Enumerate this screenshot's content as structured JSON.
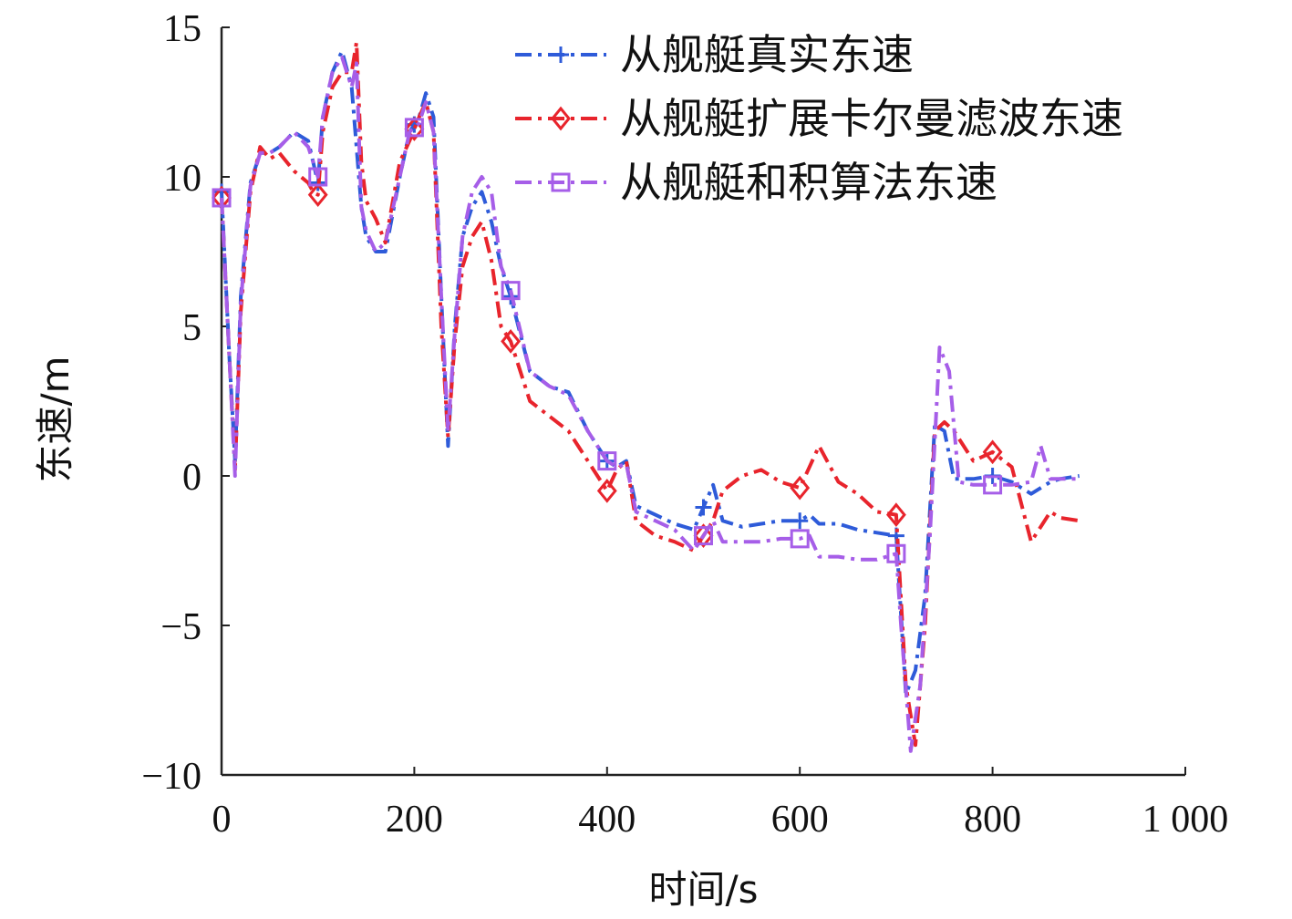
{
  "chart_data": {
    "type": "line",
    "title": "",
    "xlabel": "时间/s",
    "ylabel": "东速/m",
    "xlim": [
      0,
      1000
    ],
    "ylim": [
      -10,
      15
    ],
    "xticks": [
      0,
      200,
      400,
      600,
      800,
      1000
    ],
    "xtick_labels": [
      "0",
      "200",
      "400",
      "600",
      "800",
      "1 000"
    ],
    "yticks": [
      -10,
      -5,
      0,
      5,
      10,
      15
    ],
    "ytick_labels": [
      "−10",
      "−5",
      "0",
      "5",
      "10",
      "15"
    ],
    "grid": false,
    "legend_position": "top-right",
    "series": [
      {
        "name": "从舰艇真实东速",
        "color": "#2e5bd9",
        "marker": "plus",
        "dash": "dashdot",
        "x": [
          0,
          8,
          14,
          20,
          30,
          40,
          50,
          60,
          75,
          90,
          95,
          100,
          105,
          115,
          125,
          135,
          145,
          150,
          160,
          170,
          185,
          195,
          205,
          212,
          220,
          228,
          235,
          242,
          250,
          260,
          270,
          280,
          290,
          300,
          320,
          340,
          360,
          380,
          400,
          410,
          420,
          430,
          450,
          470,
          490,
          510,
          520,
          540,
          560,
          580,
          600,
          610,
          620,
          640,
          660,
          680,
          700,
          710,
          720,
          730,
          740,
          750,
          760,
          780,
          800,
          820,
          840,
          860,
          870,
          890
        ],
        "y": [
          9.5,
          4.0,
          0.5,
          6.0,
          9.8,
          10.8,
          10.8,
          11.0,
          11.5,
          11.2,
          10.5,
          9.8,
          12.0,
          13.5,
          14.2,
          13.0,
          9.0,
          8.0,
          7.5,
          7.5,
          10.0,
          11.5,
          12.0,
          12.8,
          12.0,
          6.0,
          1.0,
          5.0,
          8.0,
          9.0,
          9.5,
          8.5,
          7.0,
          6.0,
          3.5,
          3.0,
          2.8,
          1.5,
          0.5,
          0.3,
          0.5,
          -1.0,
          -1.3,
          -1.6,
          -1.8,
          -0.3,
          -1.5,
          -1.7,
          -1.6,
          -1.5,
          -1.5,
          -1.3,
          -1.6,
          -1.6,
          -1.8,
          -1.9,
          -2.0,
          -7.3,
          -6.5,
          -4.0,
          1.7,
          1.5,
          -0.1,
          -0.1,
          0.0,
          -0.2,
          -0.6,
          -0.2,
          -0.1,
          0.0
        ]
      },
      {
        "name": "从舰艇扩展卡尔曼滤波东速",
        "color": "#e8242c",
        "marker": "diamond",
        "dash": "dashdot",
        "x": [
          0,
          8,
          14,
          20,
          30,
          40,
          50,
          60,
          75,
          90,
          95,
          100,
          105,
          115,
          125,
          135,
          140,
          145,
          150,
          160,
          170,
          185,
          195,
          205,
          212,
          220,
          228,
          235,
          242,
          250,
          260,
          270,
          280,
          290,
          300,
          320,
          340,
          360,
          380,
          400,
          410,
          420,
          430,
          450,
          470,
          490,
          510,
          520,
          540,
          560,
          580,
          600,
          610,
          620,
          640,
          660,
          680,
          700,
          710,
          720,
          730,
          740,
          750,
          760,
          780,
          800,
          820,
          840,
          860,
          870,
          890
        ],
        "y": [
          9.3,
          4.0,
          0.2,
          5.5,
          9.5,
          11.0,
          10.6,
          10.8,
          10.2,
          9.8,
          9.5,
          9.4,
          11.5,
          13.0,
          13.5,
          13.5,
          14.5,
          10.5,
          9.2,
          8.6,
          7.8,
          10.5,
          11.2,
          12.0,
          12.5,
          11.5,
          5.0,
          1.3,
          4.5,
          7.0,
          8.0,
          8.5,
          7.2,
          5.0,
          4.5,
          2.5,
          2.0,
          1.5,
          0.5,
          -0.5,
          0.2,
          0.5,
          -1.5,
          -2.0,
          -2.2,
          -2.5,
          -1.5,
          -0.5,
          0.0,
          0.2,
          -0.2,
          -0.4,
          0.3,
          1.0,
          -0.2,
          -0.6,
          -1.2,
          -1.3,
          -7.0,
          -9.0,
          -5.0,
          1.5,
          1.8,
          1.5,
          0.5,
          0.8,
          0.3,
          -2.2,
          -1.2,
          -1.4,
          -1.5
        ]
      },
      {
        "name": "从舰艇和积算法东速",
        "color": "#a65ee8",
        "marker": "square",
        "dash": "dashdot",
        "x": [
          0,
          8,
          14,
          20,
          30,
          40,
          50,
          60,
          75,
          90,
          95,
          100,
          105,
          115,
          125,
          135,
          140,
          145,
          150,
          160,
          170,
          185,
          195,
          205,
          212,
          220,
          228,
          235,
          242,
          250,
          260,
          270,
          280,
          290,
          300,
          320,
          340,
          360,
          380,
          400,
          410,
          420,
          430,
          450,
          470,
          490,
          510,
          520,
          540,
          560,
          580,
          600,
          610,
          620,
          640,
          660,
          680,
          700,
          705,
          715,
          725,
          735,
          745,
          755,
          765,
          780,
          800,
          820,
          840,
          850,
          860,
          890
        ],
        "y": [
          9.3,
          4.0,
          0.0,
          5.8,
          9.7,
          10.8,
          10.8,
          11.0,
          11.5,
          11.0,
          10.5,
          10.0,
          12.0,
          13.5,
          14.0,
          13.0,
          13.8,
          9.0,
          8.2,
          7.5,
          7.8,
          10.0,
          11.5,
          11.8,
          12.5,
          11.5,
          6.0,
          1.5,
          4.8,
          8.0,
          9.5,
          10.0,
          9.5,
          7.0,
          6.2,
          3.5,
          3.0,
          2.7,
          1.5,
          0.5,
          0.3,
          0.4,
          -1.2,
          -1.5,
          -1.8,
          -2.5,
          -1.5,
          -2.2,
          -2.2,
          -2.2,
          -2.1,
          -2.1,
          -2.0,
          -2.7,
          -2.7,
          -2.8,
          -2.8,
          -2.6,
          -5.0,
          -9.2,
          -7.0,
          -2.0,
          4.3,
          3.5,
          -0.2,
          -0.3,
          -0.3,
          -0.3,
          -0.2,
          1.0,
          -0.1,
          -0.1
        ]
      }
    ],
    "annotations": []
  }
}
